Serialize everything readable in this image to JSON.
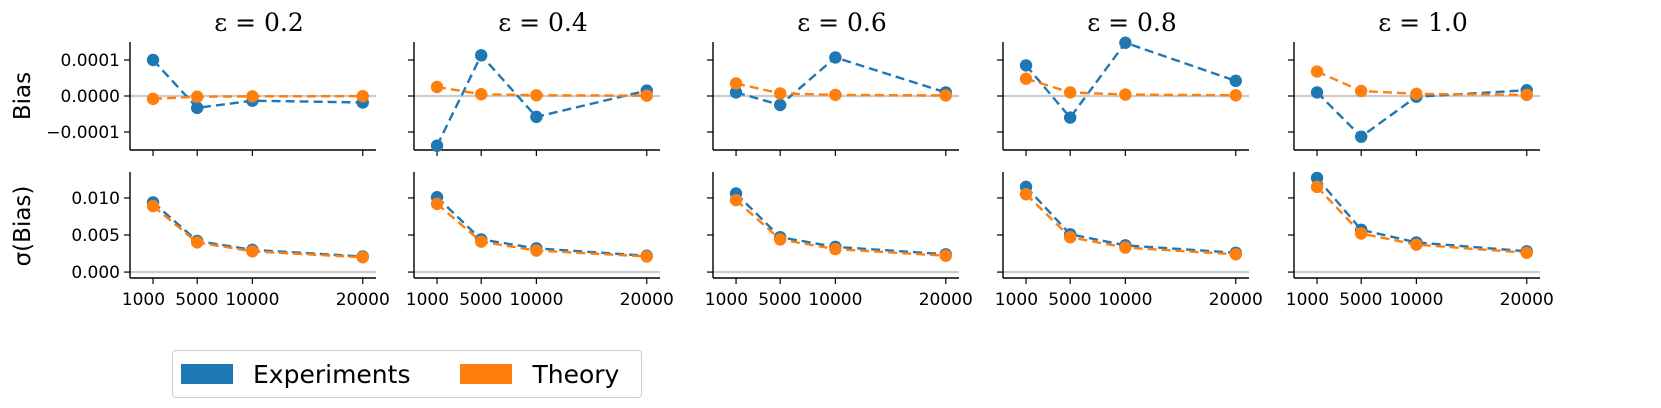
{
  "chart_data": {
    "type": "line",
    "colors": {
      "experiments": "#1f77b4",
      "theory": "#ff7f0e"
    },
    "legend": {
      "placement": "bottom-left",
      "entries": [
        "Experiments",
        "Theory"
      ]
    },
    "rows": [
      {
        "ylabel": "Bias",
        "ylim": [
          -0.00015,
          0.00015
        ],
        "yticks": [
          0.0001,
          0.0,
          -0.0001
        ],
        "ytick_labels": [
          "0.0001",
          "0.0000",
          "−0.0001"
        ]
      },
      {
        "ylabel": "σ(Bias)",
        "ylim": [
          -0.0008,
          0.0135
        ],
        "yticks": [
          0.01,
          0.005,
          0.0
        ],
        "ytick_labels": [
          "0.010",
          "0.005",
          "0.000"
        ]
      }
    ],
    "x": [
      1000,
      5000,
      10000,
      20000
    ],
    "xtick_labels": [
      "1000",
      "5000",
      "10000",
      "20000"
    ],
    "xlim": [
      0,
      21200
    ],
    "panels": [
      {
        "title": "ε = 0.2",
        "bias": {
          "experiments": [
            0.0001,
            -3.3e-05,
            -1.3e-05,
            -1.8e-05
          ],
          "theory": [
            -8e-06,
            -2e-06,
            -1e-06,
            -5e-07
          ]
        },
        "sigma": {
          "experiments": [
            0.0094,
            0.0042,
            0.003,
            0.0021
          ],
          "theory": [
            0.0089,
            0.004,
            0.0028,
            0.002
          ]
        }
      },
      {
        "title": "ε = 0.4",
        "bias": {
          "experiments": [
            -0.000138,
            0.000113,
            -5.8e-05,
            1.5e-05
          ],
          "theory": [
            2.5e-05,
            5e-06,
            2e-06,
            1e-06
          ]
        },
        "sigma": {
          "experiments": [
            0.0101,
            0.0044,
            0.0032,
            0.0022
          ],
          "theory": [
            0.0092,
            0.0041,
            0.0029,
            0.0021
          ]
        }
      },
      {
        "title": "ε = 0.6",
        "bias": {
          "experiments": [
            1e-05,
            -2.5e-05,
            0.000107,
            1e-05
          ],
          "theory": [
            3.5e-05,
            7e-06,
            3e-06,
            1.5e-06
          ]
        },
        "sigma": {
          "experiments": [
            0.0106,
            0.0047,
            0.0034,
            0.0024
          ],
          "theory": [
            0.0097,
            0.0044,
            0.0031,
            0.0022
          ]
        }
      },
      {
        "title": "ε = 0.8",
        "bias": {
          "experiments": [
            8.5e-05,
            -6e-05,
            0.000148,
            4.2e-05
          ],
          "theory": [
            4.8e-05,
            1e-05,
            4e-06,
            2e-06
          ]
        },
        "sigma": {
          "experiments": [
            0.0115,
            0.0051,
            0.0036,
            0.0026
          ],
          "theory": [
            0.0105,
            0.0047,
            0.0033,
            0.0024
          ]
        }
      },
      {
        "title": "ε = 1.0",
        "bias": {
          "experiments": [
            1e-05,
            -0.000113,
            -2e-06,
            1.6e-05
          ],
          "theory": [
            6.8e-05,
            1.4e-05,
            6e-06,
            3e-06
          ]
        },
        "sigma": {
          "experiments": [
            0.0127,
            0.0057,
            0.004,
            0.0028
          ],
          "theory": [
            0.0115,
            0.0052,
            0.0037,
            0.0026
          ]
        }
      }
    ]
  }
}
